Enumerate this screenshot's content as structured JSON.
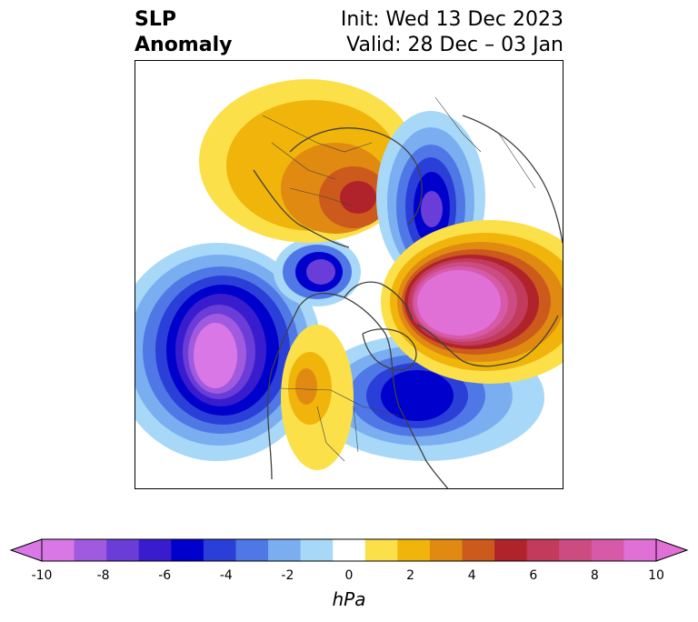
{
  "header": {
    "title_line1": "SLP",
    "title_line2": "Anomaly",
    "init_text": "Init: Wed 13 Dec 2023",
    "valid_text": "Valid: 28 Dec – 03 Jan"
  },
  "colorbar": {
    "unit": "hPa",
    "ticks": [
      "-10",
      "-8",
      "-6",
      "-4",
      "-2",
      "0",
      "2",
      "4",
      "6",
      "8",
      "10"
    ],
    "colors": [
      "#d977e6",
      "#a05ae0",
      "#6a3cd8",
      "#3a1ccf",
      "#0000cc",
      "#2a3fd8",
      "#4f78e6",
      "#7aaef0",
      "#a8d8f8",
      "#ffffff",
      "#fbe04a",
      "#f0b40a",
      "#e08a12",
      "#cc5a1c",
      "#b0232a",
      "#c23a5c",
      "#cc4c82",
      "#d65aa8",
      "#e070d6"
    ],
    "under_color": "#d977e6",
    "over_color": "#e070d6"
  }
}
